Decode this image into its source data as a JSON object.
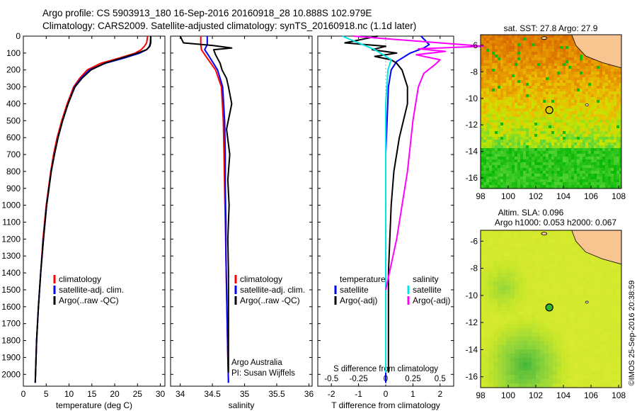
{
  "header": {
    "line1": "Argo profile: CS 5903913_180 16-Sep-2016 20160918_28 10.888S 102.979E",
    "line2": "Climatology: CARS2009. Satellite-adjusted climatology: synTS_20160918.nc (1.1d later)",
    "map_top_title": "sat. SST: 27.8 Argo: 27.9",
    "map_bottom_title1": "Altim. SLA: 0.096",
    "map_bottom_title2": "Argo h1000: 0.053 h2000: 0.067",
    "imos": "©IMOS 25-Sep-2016 20:38:59"
  },
  "colors": {
    "climatology": "#ff0000",
    "satellite": "#0000ff",
    "argo": "#000000",
    "sal_satellite": "#00e5e5",
    "sal_argo": "#ff00ff",
    "land": "#f8c490"
  },
  "chart_data": [
    {
      "type": "line",
      "panel": "temperature",
      "xlabel": "temperature (deg C)",
      "xlim": [
        0,
        31
      ],
      "xticks": [
        0,
        5,
        10,
        15,
        20,
        25,
        30
      ],
      "ylim": [
        2070,
        0
      ],
      "yticks": [
        0,
        100,
        200,
        300,
        400,
        500,
        600,
        700,
        800,
        900,
        1000,
        1100,
        1200,
        1300,
        1400,
        1500,
        1600,
        1700,
        1800,
        1900,
        2000
      ],
      "legend": [
        "climatology",
        "satellite-adj. clim.",
        "Argo(..raw -QC)"
      ],
      "series": [
        {
          "name": "climatology",
          "x": [
            27.2,
            27.0,
            26.5,
            25.8,
            24.5,
            21.0,
            17.0,
            14.0,
            12.3,
            11.0,
            9.6,
            8.4,
            7.4,
            6.6,
            6.0,
            5.0,
            4.3,
            3.8,
            3.3,
            2.9,
            2.6
          ],
          "y": [
            0,
            40,
            60,
            80,
            100,
            130,
            160,
            200,
            250,
            300,
            400,
            500,
            600,
            700,
            800,
            1000,
            1200,
            1400,
            1600,
            1800,
            2050
          ]
        },
        {
          "name": "satellite-adj. clim.",
          "x": [
            27.9,
            27.8,
            27.6,
            27.0,
            25.5,
            22.0,
            18.0,
            14.5,
            12.6,
            11.2,
            9.8,
            8.6,
            7.6,
            6.8,
            6.1,
            5.1,
            4.4,
            3.8,
            3.3,
            2.9,
            2.6
          ],
          "y": [
            0,
            40,
            60,
            80,
            100,
            130,
            160,
            200,
            250,
            300,
            400,
            500,
            600,
            700,
            800,
            1000,
            1200,
            1400,
            1600,
            1800,
            2050
          ]
        },
        {
          "name": "Argo(..raw -QC)",
          "x": [
            27.9,
            27.9,
            27.7,
            27.0,
            25.0,
            21.5,
            17.8,
            14.8,
            12.8,
            11.3,
            9.8,
            8.6,
            7.6,
            6.8,
            6.1,
            5.1,
            4.4,
            3.8,
            3.3,
            2.9,
            2.6
          ],
          "y": [
            0,
            40,
            60,
            80,
            100,
            130,
            160,
            200,
            250,
            300,
            400,
            500,
            600,
            700,
            800,
            1000,
            1200,
            1400,
            1600,
            1800,
            2050
          ]
        }
      ]
    },
    {
      "type": "line",
      "panel": "salinity",
      "xlabel": "salinity",
      "xlim": [
        33.85,
        36.05
      ],
      "xticks": [
        34,
        34.5,
        35,
        35.5,
        36
      ],
      "ylim": [
        2070,
        0
      ],
      "legend": [
        "climatology",
        "satellite-adj. clim.",
        "Argo(..raw -QC)"
      ],
      "annotation": [
        "Argo Australia",
        "PI: Susan Wijffels"
      ],
      "series": [
        {
          "name": "climatology",
          "x": [
            34.32,
            34.32,
            34.33,
            34.4,
            34.55,
            34.64,
            34.67,
            34.68,
            34.69,
            34.7,
            34.71,
            34.72,
            34.73,
            34.74,
            34.75
          ],
          "y": [
            0,
            50,
            80,
            120,
            200,
            300,
            500,
            700,
            900,
            1100,
            1300,
            1500,
            1700,
            1900,
            2050
          ]
        },
        {
          "name": "satellite-adj. clim.",
          "x": [
            34.42,
            34.42,
            34.38,
            34.45,
            34.58,
            34.66,
            34.69,
            34.7,
            34.7,
            34.71,
            34.71,
            34.72,
            34.73,
            34.74,
            34.75
          ],
          "y": [
            0,
            50,
            80,
            120,
            200,
            300,
            500,
            700,
            900,
            1100,
            1300,
            1500,
            1700,
            1900,
            2050
          ]
        },
        {
          "name": "Argo(..raw -QC)",
          "x": [
            34.0,
            34.05,
            34.5,
            34.8,
            34.52,
            34.55,
            34.62,
            34.65,
            34.72,
            34.75,
            34.8,
            34.72,
            34.77,
            34.74,
            34.76,
            34.74,
            34.75,
            34.75,
            34.75,
            34.75
          ],
          "y": [
            0,
            40,
            55,
            70,
            80,
            110,
            160,
            200,
            250,
            300,
            400,
            550,
            700,
            850,
            1000,
            1200,
            1400,
            1600,
            1800,
            1990
          ]
        }
      ]
    },
    {
      "type": "line",
      "panel": "difference",
      "xlabel": "T difference from climatology",
      "top_xlabel": "S difference from climatology",
      "xlim": [
        -2.5,
        2.5
      ],
      "xticks": [
        -2,
        -1,
        0,
        1,
        2
      ],
      "top_xticks": [
        "-0.5",
        "-0.25",
        "0",
        "0.25",
        "0.5"
      ],
      "ylim": [
        2070,
        0
      ],
      "legend": [
        "temperature",
        "satellite",
        "Argo(-adj)",
        "salinity",
        "satellite",
        "Argo(-adj)"
      ],
      "series": [
        {
          "name": "T satellite",
          "x": [
            1.3,
            1.6,
            1.4,
            0.9,
            0.4,
            0.2,
            0.1,
            0.05,
            0.0,
            0.0,
            0.0,
            0.0,
            0.0,
            0.0
          ],
          "y": [
            0,
            50,
            70,
            100,
            150,
            200,
            300,
            500,
            700,
            900,
            1200,
            1500,
            1800,
            2050
          ]
        },
        {
          "name": "T Argo(-adj)",
          "x": [
            -0.3,
            -1.5,
            0.0,
            -0.5,
            0.4,
            -0.4,
            0.2,
            0.4,
            0.6,
            0.8,
            0.8,
            0.5,
            0.3,
            0.2,
            0.1,
            0.1
          ],
          "y": [
            0,
            40,
            60,
            80,
            100,
            120,
            140,
            160,
            200,
            300,
            400,
            600,
            800,
            1000,
            1400,
            1990
          ]
        },
        {
          "name": "S satellite",
          "x": [
            -0.4,
            -0.1,
            -0.05,
            0.05,
            0.02,
            0.0,
            0.0,
            0.0,
            0.0
          ],
          "y": [
            0,
            80,
            100,
            140,
            200,
            400,
            800,
            1400,
            1990
          ]
        },
        {
          "name": "S Argo(-adj)",
          "x": [
            -0.3,
            0.9,
            0.3,
            0.55,
            0.28,
            0.5,
            0.45,
            0.35,
            0.3,
            0.25,
            0.2,
            0.1,
            0.0
          ],
          "y": [
            0,
            60,
            75,
            90,
            110,
            140,
            170,
            220,
            300,
            500,
            800,
            1200,
            1500
          ]
        }
      ]
    },
    {
      "type": "heatmap",
      "panel": "sst-map",
      "title": "sat. SST: 27.8 Argo: 27.9",
      "xlim": [
        98,
        108.2
      ],
      "ylim": [
        -16.8,
        -5.2
      ],
      "xticks": [
        98,
        100,
        102,
        104,
        106,
        108
      ],
      "yticks": [
        -6,
        -8,
        -10,
        -12,
        -14,
        -16
      ],
      "float_position": {
        "lon": 102.979,
        "lat": -10.888
      }
    },
    {
      "type": "heatmap",
      "panel": "sla-map",
      "title": "Altim. SLA: 0.096",
      "xlim": [
        98,
        108.2
      ],
      "ylim": [
        -16.8,
        -5.2
      ],
      "xticks": [
        98,
        100,
        102,
        104,
        106,
        108
      ],
      "yticks": [
        -6,
        -8,
        -10,
        -12,
        -14,
        -16
      ],
      "float_position": {
        "lon": 102.979,
        "lat": -10.888
      }
    }
  ]
}
